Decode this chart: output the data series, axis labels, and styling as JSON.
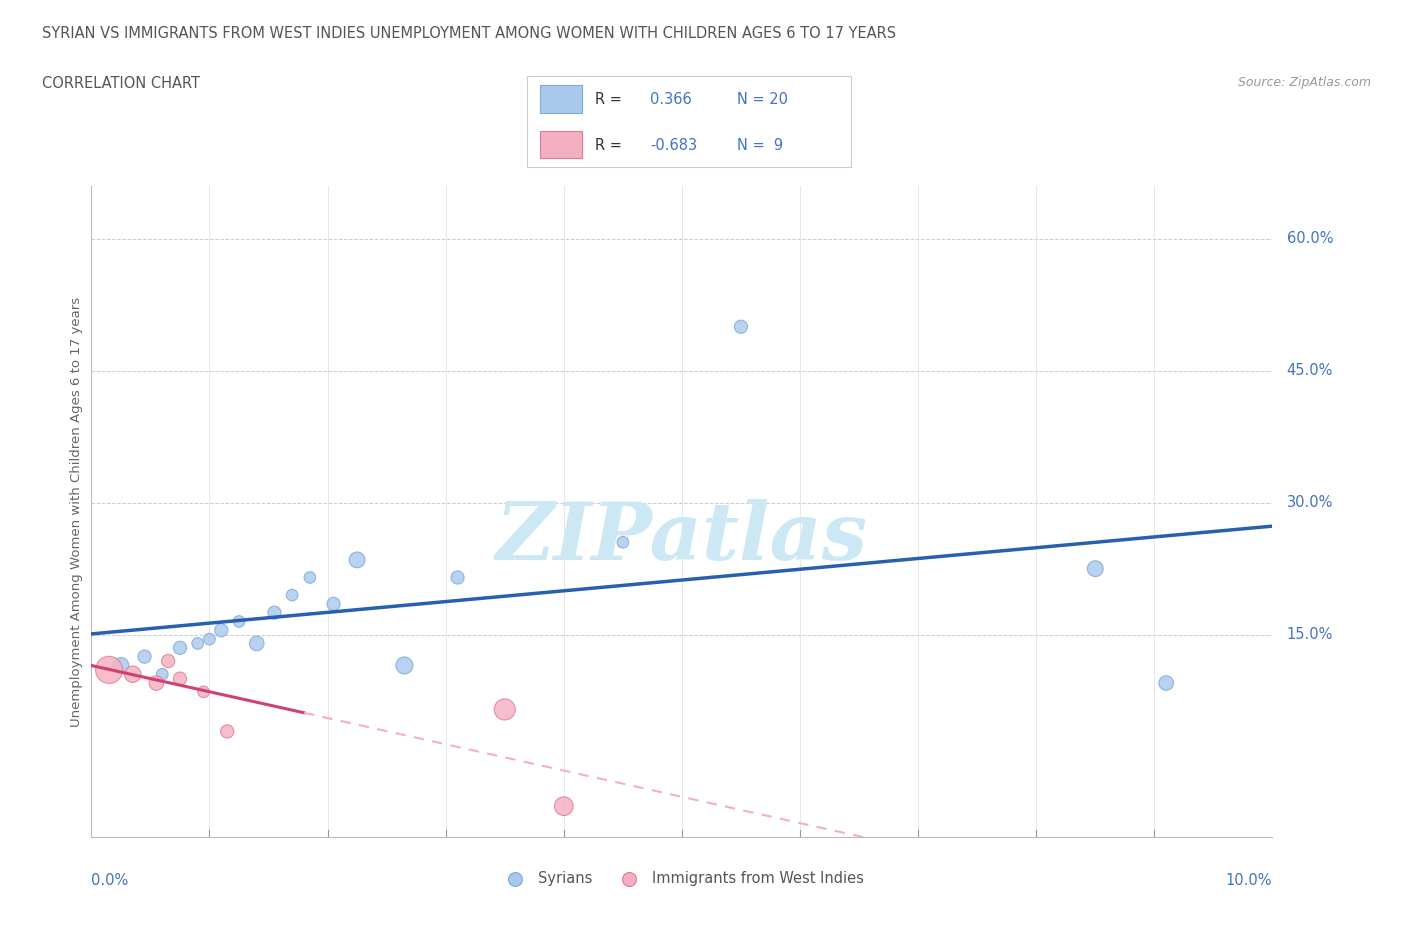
{
  "title_line1": "SYRIAN VS IMMIGRANTS FROM WEST INDIES UNEMPLOYMENT AMONG WOMEN WITH CHILDREN AGES 6 TO 17 YEARS",
  "title_line2": "CORRELATION CHART",
  "source": "Source: ZipAtlas.com",
  "ylabel": "Unemployment Among Women with Children Ages 6 to 17 years",
  "y_tick_labels": [
    "15.0%",
    "30.0%",
    "45.0%",
    "60.0%"
  ],
  "y_tick_values": [
    15,
    30,
    45,
    60
  ],
  "x_min": 0.0,
  "x_max": 10.0,
  "y_min": -8.0,
  "y_max": 66.0,
  "syrians_x": [
    0.25,
    0.45,
    0.6,
    0.75,
    0.9,
    1.0,
    1.1,
    1.25,
    1.4,
    1.55,
    1.7,
    1.85,
    2.05,
    2.25,
    2.65,
    3.1,
    4.5,
    5.5,
    8.5,
    9.1
  ],
  "syrians_y": [
    11.5,
    12.5,
    10.5,
    13.5,
    14.0,
    14.5,
    15.5,
    16.5,
    14.0,
    17.5,
    19.5,
    21.5,
    18.5,
    23.5,
    11.5,
    21.5,
    25.5,
    50.0,
    22.5,
    9.5
  ],
  "syrians_size": [
    130,
    90,
    70,
    90,
    70,
    70,
    90,
    70,
    110,
    90,
    70,
    70,
    90,
    130,
    150,
    90,
    70,
    90,
    130,
    110
  ],
  "west_x": [
    0.15,
    0.35,
    0.55,
    0.65,
    0.75,
    0.95,
    1.15,
    3.5,
    4.0
  ],
  "west_y": [
    11.0,
    10.5,
    9.5,
    12.0,
    10.0,
    8.5,
    4.0,
    6.5,
    -4.5
  ],
  "west_size": [
    380,
    140,
    110,
    90,
    90,
    70,
    90,
    230,
    180
  ],
  "color_syrian": "#aac8ec",
  "color_syrian_edge": "#7aabdc",
  "color_west": "#f4b0c0",
  "color_west_edge": "#e07898",
  "color_blue_line": "#2860b0",
  "color_pink_line": "#d04070",
  "color_pink_dash": "#f4b0c0",
  "watermark_color": "#cce8f4",
  "background_color": "#ffffff",
  "grid_color": "#cccccc"
}
